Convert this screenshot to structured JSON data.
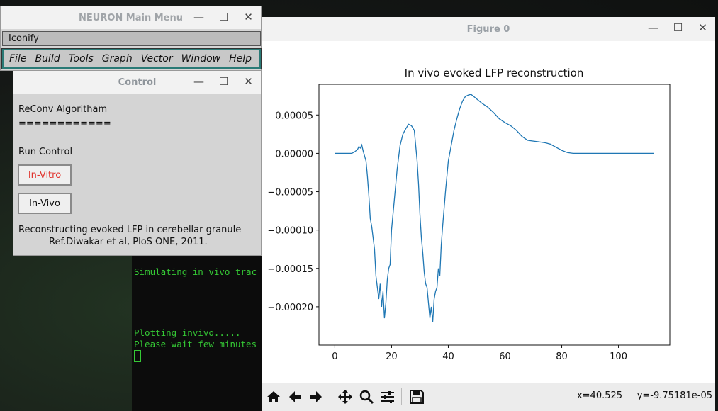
{
  "terminal": {
    "lines": [
      "Simulating in vivo trac",
      "Plotting invivo.....",
      "Please wait few minutes"
    ]
  },
  "neuron_main": {
    "title": "NEURON Main Menu",
    "iconify": "Iconify",
    "menu": [
      "File",
      "Build",
      "Tools",
      "Graph",
      "Vector",
      "Window",
      "Help"
    ]
  },
  "control": {
    "title": "Control",
    "algorithm": "ReConv Algoritham",
    "underline": "============",
    "run_control": "Run Control",
    "btn_invitro": "In-Vitro",
    "btn_invivo": "In-Vivo",
    "description": "Reconstructing evoked LFP in cerebellar granule",
    "reference": "Ref.Diwakar et al, PloS ONE, 2011."
  },
  "window_controls": {
    "minimize": "—",
    "maximize": "☐",
    "close": "✕"
  },
  "figure": {
    "title": "Figure 0",
    "coord_x": "x=40.525",
    "coord_y": "y=-9.75181e-05"
  },
  "colors": {
    "line": "#1f77b4",
    "invitro_text": "#e0302a",
    "terminal_text": "#35c935"
  },
  "chart_data": {
    "type": "line",
    "title": "In vivo evoked LFP reconstruction",
    "xlabel": "",
    "ylabel": "",
    "xlim": [
      -5.6,
      118.1
    ],
    "ylim": [
      -0.00025,
      9e-05
    ],
    "xticks": [
      0,
      20,
      40,
      60,
      80,
      100
    ],
    "yticks": [
      5e-05,
      0.0,
      -5e-05,
      -0.0001,
      -0.00015,
      -0.0002
    ],
    "ytick_labels": [
      "0.00005",
      "0.00000",
      "−0.00005",
      "−0.00010",
      "−0.00015",
      "−0.00020"
    ],
    "series": [
      {
        "x": [
          0,
          6,
          7,
          8,
          8.5,
          9,
          9.5,
          10,
          11,
          11.5,
          12,
          12.5,
          13,
          13.5,
          14,
          14.5,
          15,
          15.5,
          16,
          16.5,
          17,
          17.5,
          18,
          18.5,
          19,
          19.5,
          20,
          21,
          22,
          23,
          24,
          25,
          26,
          27,
          28,
          28.5,
          29,
          29.5,
          30,
          30.5,
          31,
          31.5,
          32,
          32.5,
          33,
          33.5,
          34,
          34.5,
          35,
          35.5,
          36,
          36.5,
          37,
          37.5,
          38,
          39,
          40,
          41,
          42,
          43,
          44,
          45,
          46,
          47,
          48,
          49,
          50,
          52,
          54,
          56,
          58,
          60,
          62,
          64,
          66,
          68,
          70,
          72,
          74,
          76,
          78,
          80,
          82,
          84,
          86,
          90,
          100,
          110,
          112.5
        ],
        "y": [
          0,
          0,
          2e-06,
          5e-06,
          9e-06,
          7e-06,
          1.1e-05,
          3e-06,
          -1e-05,
          -3e-05,
          -5.5e-05,
          -8.5e-05,
          -9.5e-05,
          -0.00011,
          -0.000125,
          -0.00016,
          -0.000175,
          -0.00019,
          -0.00017,
          -0.0002,
          -0.00018,
          -0.000215,
          -0.000195,
          -0.000165,
          -0.00015,
          -0.000145,
          -0.0001,
          -6e-05,
          -2e-05,
          1e-05,
          2.5e-05,
          3.2e-05,
          3.8e-05,
          3.6e-05,
          3e-05,
          1e-05,
          -1e-05,
          -4e-05,
          -8e-05,
          -0.00011,
          -0.00013,
          -0.000155,
          -0.00017,
          -0.000175,
          -0.000195,
          -0.000215,
          -0.0002,
          -0.00022,
          -0.00019,
          -0.00018,
          -0.000175,
          -0.00015,
          -0.00016,
          -0.00012,
          -9.5e-05,
          -5e-05,
          -1e-05,
          1e-05,
          3e-05,
          4.5e-05,
          5.8e-05,
          6.8e-05,
          7.4e-05,
          7.6e-05,
          7.7e-05,
          7.4e-05,
          7.1e-05,
          6.5e-05,
          6e-05,
          5.3e-05,
          4.5e-05,
          4e-05,
          3.6e-05,
          3e-05,
          2.2e-05,
          1.7e-05,
          1.6e-05,
          1.5e-05,
          1.4e-05,
          1.2e-05,
          8e-06,
          4e-06,
          1e-06,
          0,
          0,
          0,
          0,
          0,
          0
        ]
      }
    ]
  }
}
